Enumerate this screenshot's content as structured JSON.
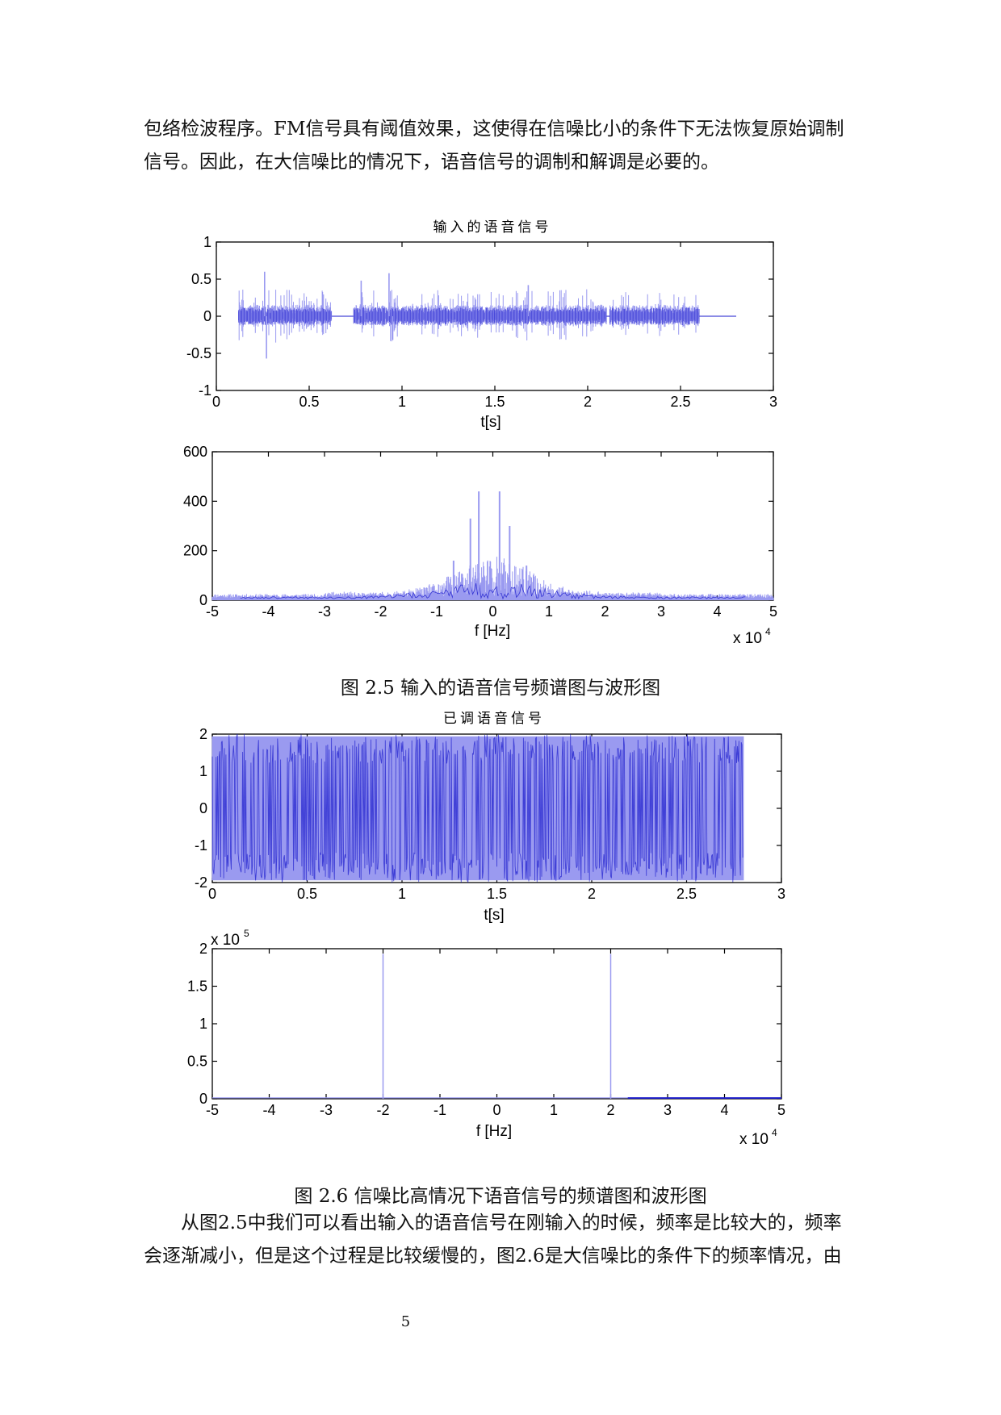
{
  "page": {
    "para_top_1": "包络检波程序。FM信号具有阈值效果，这使得在信噪比小的条件下无法恢复原始调制",
    "para_top_2": "信号。因此，在大信噪比的情况下，语音信号的调制和解调是必要的。",
    "caption_fig_2_5": "图 2.5 输入的语音信号频谱图与波形图",
    "caption_fig_2_6": "图 2.6 信噪比高情况下语音信号的频谱图和波形图",
    "para_bottom_1": "从图2.5中我们可以看出输入的语音信号在刚输入的时候，频率是比较大的，频率",
    "para_bottom_2": "会逐渐减小，但是这个过程是比较缓慢的，图2.6是大信噪比的条件下的频率情况，由",
    "page_number": "5"
  },
  "colors": {
    "trace_light": "#9a9af0",
    "trace_dark": "#1a1acc",
    "axis": "#000000"
  },
  "chart_data": [
    {
      "id": "input-waveform",
      "type": "line",
      "title": "输入的语音信号",
      "xlabel": "t[s]",
      "ylabel": "",
      "xlim": [
        0,
        3
      ],
      "ylim": [
        -1,
        1
      ],
      "xticks": [
        0,
        0.5,
        1,
        1.5,
        2,
        2.5,
        3
      ],
      "xtick_labels": [
        "0",
        "0.5",
        "1",
        "1.5",
        "2",
        "2.5",
        "3"
      ],
      "yticks": [
        -1,
        -0.5,
        0,
        0.5,
        1
      ],
      "ytick_labels": [
        "-1",
        "-0.5",
        "0",
        "0.5",
        "1"
      ],
      "signal": {
        "t_end": 2.8,
        "segments": [
          [
            0.12,
            0.62
          ],
          [
            0.74,
            1.5
          ],
          [
            1.5,
            2.1
          ],
          [
            2.12,
            2.6
          ]
        ],
        "peaks": [
          [
            0.26,
            0.6
          ],
          [
            0.27,
            -0.57
          ],
          [
            0.78,
            0.48
          ],
          [
            0.93,
            0.58
          ],
          [
            0.95,
            -0.32
          ],
          [
            1.68,
            0.42
          ]
        ],
        "envelope": 0.28
      }
    },
    {
      "id": "input-spectrum",
      "type": "line",
      "title": "",
      "xlabel": "f [Hz]",
      "ylabel": "",
      "x_multiplier": "x 10",
      "x_multiplier_exp": "4",
      "xlim": [
        -5,
        5
      ],
      "ylim": [
        0,
        600
      ],
      "xticks": [
        -5,
        -4,
        -3,
        -2,
        -1,
        0,
        1,
        2,
        3,
        4,
        5
      ],
      "xtick_labels": [
        "-5",
        "-4",
        "-3",
        "-2",
        "-1",
        "0",
        "1",
        "2",
        "3",
        "4",
        "5"
      ],
      "yticks": [
        0,
        200,
        400,
        600
      ],
      "ytick_labels": [
        "0",
        "200",
        "400",
        "600"
      ],
      "signal": {
        "peaks": [
          [
            -0.25,
            440
          ],
          [
            0.12,
            440
          ],
          [
            -0.7,
            160
          ],
          [
            0.6,
            140
          ],
          [
            -0.4,
            330
          ],
          [
            0.3,
            300
          ]
        ],
        "base_level": 10,
        "central_width": 0.9
      }
    },
    {
      "id": "modulated-waveform",
      "type": "line",
      "title": "已调语音信号",
      "xlabel": "t[s]",
      "ylabel": "",
      "xlim": [
        0,
        3
      ],
      "ylim": [
        -2,
        2
      ],
      "xticks": [
        0,
        0.5,
        1,
        1.5,
        2,
        2.5,
        3
      ],
      "xtick_labels": [
        "0",
        "0.5",
        "1",
        "1.5",
        "2",
        "2.5",
        "3"
      ],
      "yticks": [
        -2,
        -1,
        0,
        1,
        2
      ],
      "ytick_labels": [
        "-2",
        "-1",
        "0",
        "1",
        "2"
      ],
      "signal": {
        "t_end": 2.8,
        "amplitude": 2
      }
    },
    {
      "id": "modulated-spectrum",
      "type": "line",
      "title": "",
      "xlabel": "f [Hz]",
      "ylabel": "",
      "y_multiplier": "x 10",
      "y_multiplier_exp": "5",
      "x_multiplier": "x 10",
      "x_multiplier_exp": "4",
      "xlim": [
        -5,
        5
      ],
      "ylim": [
        0,
        2
      ],
      "xticks": [
        -5,
        -4,
        -3,
        -2,
        -1,
        0,
        1,
        2,
        3,
        4,
        5
      ],
      "xtick_labels": [
        "-5",
        "-4",
        "-3",
        "-2",
        "-1",
        "0",
        "1",
        "2",
        "3",
        "4",
        "5"
      ],
      "yticks": [
        0,
        0.5,
        1,
        1.5,
        2
      ],
      "ytick_labels": [
        "0",
        "0.5",
        "1",
        "1.5",
        "2"
      ],
      "signal": {
        "spikes": [
          [
            -2,
            1.93
          ],
          [
            2,
            1.93
          ]
        ],
        "dense_band": [
          2.3,
          5
        ],
        "dense_level": 0.02
      }
    }
  ]
}
